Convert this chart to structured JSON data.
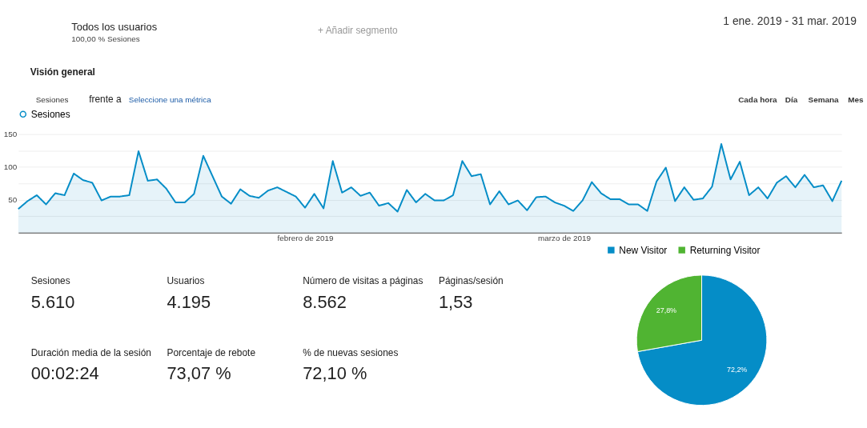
{
  "chart_data": [
    {
      "type": "other",
      "annotations": [
        "Todos los usuarios",
        "100,00 % Sesiones",
        "+ Añadir segmento",
        "1 ene. 2019 - 31 mar. 2019",
        "Visión general",
        "Sesiones",
        "frente a",
        "Seleccione una métrica",
        "Cada hora",
        "Día",
        "Semana",
        "Mes"
      ]
    },
    {
      "type": "area",
      "x": [
        "2019-01-01",
        "2019-01-02",
        "2019-01-03",
        "2019-01-04",
        "2019-01-05",
        "2019-01-06",
        "2019-01-07",
        "2019-01-08",
        "2019-01-09",
        "2019-01-10",
        "2019-01-11",
        "2019-01-12",
        "2019-01-13",
        "2019-01-14",
        "2019-01-15",
        "2019-01-16",
        "2019-01-17",
        "2019-01-18",
        "2019-01-19",
        "2019-01-20",
        "2019-01-21",
        "2019-01-22",
        "2019-01-23",
        "2019-01-24",
        "2019-01-25",
        "2019-01-26",
        "2019-01-27",
        "2019-01-28",
        "2019-01-29",
        "2019-01-30",
        "2019-01-31",
        "2019-02-01",
        "2019-02-02",
        "2019-02-03",
        "2019-02-04",
        "2019-02-05",
        "2019-02-06",
        "2019-02-07",
        "2019-02-08",
        "2019-02-09",
        "2019-02-10",
        "2019-02-11",
        "2019-02-12",
        "2019-02-13",
        "2019-02-14",
        "2019-02-15",
        "2019-02-16",
        "2019-02-17",
        "2019-02-18",
        "2019-02-19",
        "2019-02-20",
        "2019-02-21",
        "2019-02-22",
        "2019-02-23",
        "2019-02-24",
        "2019-02-25",
        "2019-02-26",
        "2019-02-27",
        "2019-02-28",
        "2019-03-01",
        "2019-03-02",
        "2019-03-03",
        "2019-03-04",
        "2019-03-05",
        "2019-03-06",
        "2019-03-07",
        "2019-03-08",
        "2019-03-09",
        "2019-03-10",
        "2019-03-11",
        "2019-03-12",
        "2019-03-13",
        "2019-03-14",
        "2019-03-15",
        "2019-03-16",
        "2019-03-17",
        "2019-03-18",
        "2019-03-19",
        "2019-03-20",
        "2019-03-21",
        "2019-03-22",
        "2019-03-23",
        "2019-03-24",
        "2019-03-25",
        "2019-03-26",
        "2019-03-27",
        "2019-03-28",
        "2019-03-29",
        "2019-03-30",
        "2019-03-31"
      ],
      "series": [
        {
          "name": "Sesiones",
          "color": "#058dc7",
          "values": [
            36,
            48,
            57,
            43,
            60,
            57,
            90,
            80,
            76,
            49,
            55,
            55,
            57,
            124,
            79,
            81,
            67,
            46,
            46,
            59,
            117,
            86,
            55,
            44,
            66,
            56,
            53,
            64,
            69,
            62,
            55,
            38,
            59,
            37,
            109,
            61,
            69,
            56,
            61,
            41,
            45,
            32,
            65,
            46,
            59,
            49,
            49,
            57,
            109,
            86,
            89,
            43,
            63,
            43,
            49,
            34,
            54,
            55,
            46,
            41,
            33,
            49,
            77,
            60,
            51,
            51,
            43,
            43,
            33,
            78,
            99,
            48,
            69,
            50,
            52,
            70,
            135,
            81,
            108,
            57,
            69,
            52,
            76,
            86,
            69,
            88,
            69,
            72,
            48,
            79
          ]
        }
      ],
      "xlim": [
        "2019-01-01",
        "2019-03-31"
      ],
      "xticks": [
        {
          "value": "2019-02-01",
          "label": "febrero de 2019"
        },
        {
          "value": "2019-03-01",
          "label": "marzo de 2019"
        }
      ],
      "ylim": [
        0,
        150
      ],
      "yticks": [
        {
          "value": 25,
          "label": null
        },
        50,
        {
          "value": 75,
          "label": null
        },
        100,
        {
          "value": 125,
          "label": null
        },
        150
      ],
      "grid": "y",
      "legend": "top left",
      "marker": "none",
      "line_style": "solid"
    },
    {
      "type": "other",
      "annotations": [
        "Sesiones",
        "5.610",
        "Usuarios",
        "4.195",
        "Número de visitas a páginas",
        "8.562",
        "Páginas/sesión",
        "1,53",
        "Duración media de la sesión",
        "00:02:24",
        "Porcentaje de rebote",
        "73,07 %",
        "% de nuevas sesiones",
        "72,10 %"
      ]
    },
    {
      "type": "pie",
      "categories": [
        "New Visitor",
        "Returning Visitor"
      ],
      "values": [
        72.2,
        27.8
      ],
      "colors": [
        "#058dc7",
        "#50b432"
      ],
      "value_labels": [
        "72,2%",
        "27,8%"
      ],
      "legend": "top"
    }
  ]
}
